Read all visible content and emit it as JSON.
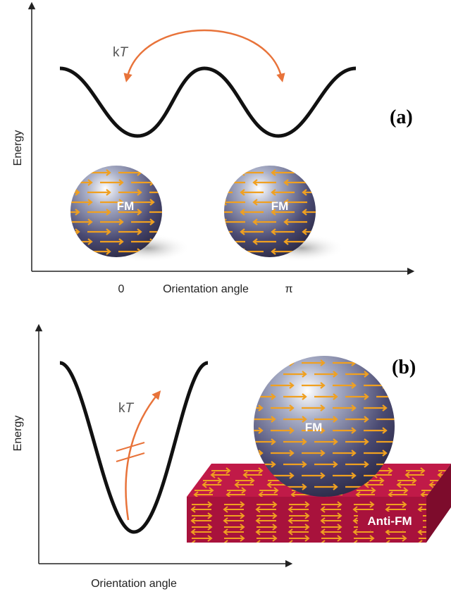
{
  "panel_a": {
    "label": "(a)",
    "y_axis": "Energy",
    "thermal": {
      "k": "k",
      "T": "T"
    },
    "particles": [
      "FM",
      "FM"
    ],
    "x_ticks": [
      "0",
      "π"
    ],
    "x_axis": "Orientation angle"
  },
  "panel_b": {
    "label": "(b)",
    "y_axis": "Energy",
    "thermal": {
      "k": "k",
      "T": "T"
    },
    "particle": "FM",
    "substrate": "Anti-FM",
    "x_axis": "Orientation angle"
  }
}
